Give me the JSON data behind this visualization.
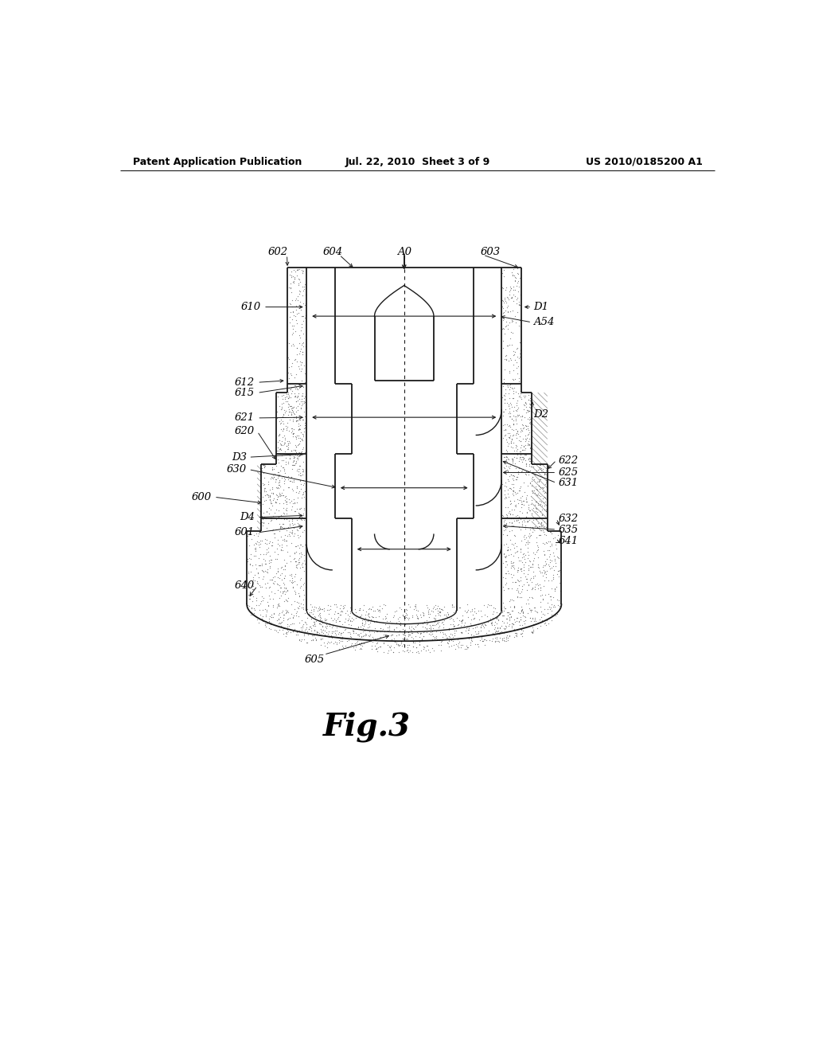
{
  "bg_color": "#ffffff",
  "header_left": "Patent Application Publication",
  "header_mid": "Jul. 22, 2010  Sheet 3 of 9",
  "header_right": "US 2010/0185200 A1",
  "fig_label": "Fig.3",
  "lc": "#1a1a1a",
  "lw": 1.3,
  "lwi": 1.0,
  "fsize": 9.5,
  "fig_label_size": 28
}
